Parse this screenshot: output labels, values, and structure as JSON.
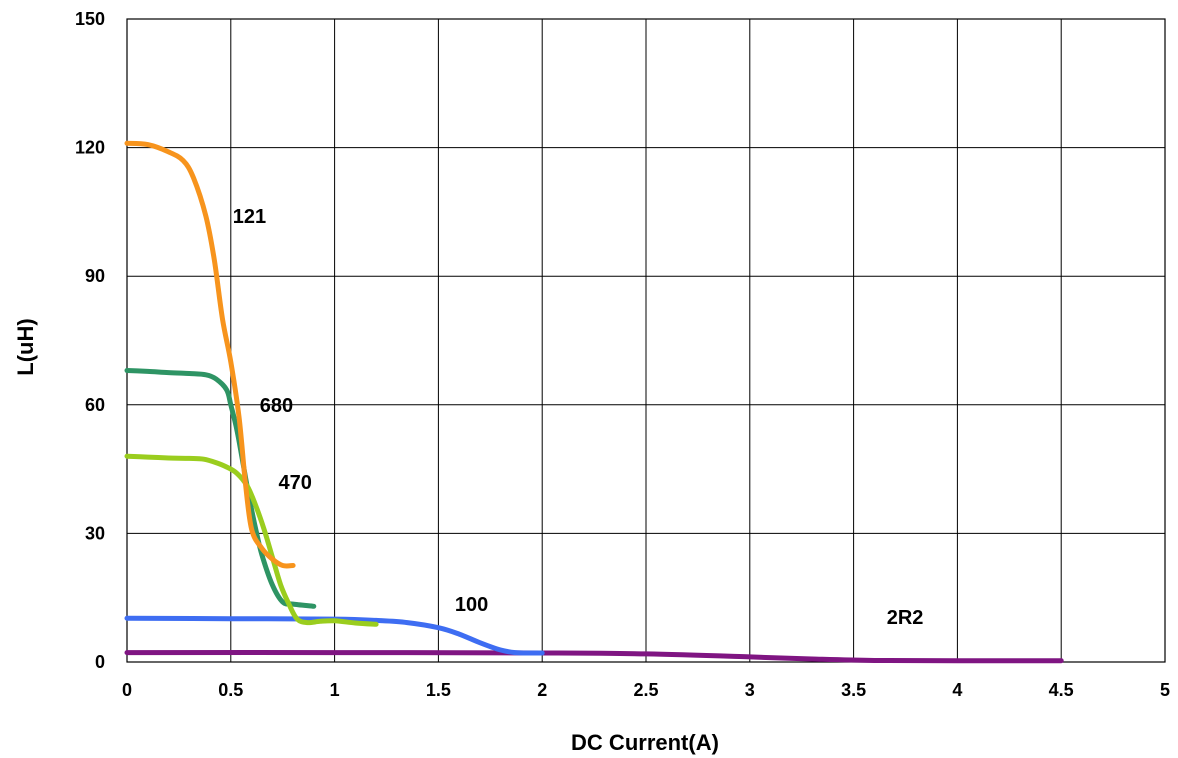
{
  "chart_data": {
    "type": "line",
    "title": "",
    "xlabel": "DC Current(A)",
    "ylabel": "L(uH)",
    "xlim": [
      0,
      5
    ],
    "ylim": [
      0,
      150
    ],
    "xticks": [
      0,
      0.5,
      1,
      1.5,
      2,
      2.5,
      3,
      3.5,
      4,
      4.5,
      5
    ],
    "yticks": [
      0,
      30,
      60,
      90,
      120,
      150
    ],
    "xtick_labels": [
      "0",
      "0.5",
      "1",
      "1.5",
      "2",
      "2.5",
      "3",
      "3.5",
      "4",
      "4.5",
      "5"
    ],
    "ytick_labels": [
      "0",
      "30",
      "60",
      "90",
      "120",
      "150"
    ],
    "grid": true,
    "legend": "none",
    "series": [
      {
        "name": "121",
        "color": "#F7941D",
        "x": [
          0,
          0.1,
          0.2,
          0.27,
          0.32,
          0.38,
          0.42,
          0.46,
          0.5,
          0.54,
          0.57,
          0.6,
          0.65,
          0.7,
          0.75,
          0.8
        ],
        "y": [
          121,
          120.7,
          119,
          117,
          113,
          104,
          94,
          80,
          70,
          57,
          42,
          31,
          26.5,
          24,
          22.5,
          22.5
        ]
      },
      {
        "name": "680",
        "color": "#2E9464",
        "x": [
          0,
          0.1,
          0.2,
          0.3,
          0.38,
          0.43,
          0.48,
          0.5,
          0.53,
          0.56,
          0.59,
          0.62,
          0.65,
          0.7,
          0.75,
          0.8,
          0.9
        ],
        "y": [
          68,
          67.8,
          67.5,
          67.3,
          67,
          66,
          63.5,
          60,
          54,
          46,
          38,
          31,
          25,
          18,
          14,
          13.5,
          13
        ]
      },
      {
        "name": "470",
        "color": "#9ACD1E",
        "x": [
          0,
          0.1,
          0.2,
          0.3,
          0.37,
          0.43,
          0.48,
          0.53,
          0.58,
          0.62,
          0.66,
          0.7,
          0.74,
          0.78,
          0.82,
          0.87,
          0.93,
          1.0,
          1.1,
          1.2
        ],
        "y": [
          48,
          47.8,
          47.6,
          47.5,
          47.3,
          46.5,
          45.5,
          44,
          41,
          36.5,
          31,
          24.5,
          18,
          13.5,
          10,
          9.2,
          9.5,
          9.6,
          9.1,
          8.8
        ]
      },
      {
        "name": "100",
        "color": "#3E6DF2",
        "x": [
          0,
          0.5,
          1.0,
          1.2,
          1.35,
          1.5,
          1.6,
          1.7,
          1.8,
          1.87,
          1.95,
          2.0
        ],
        "y": [
          10.2,
          10.1,
          10,
          9.7,
          9.2,
          8,
          6.5,
          4.5,
          2.8,
          2.2,
          2.1,
          2.1
        ]
      },
      {
        "name": "2R2",
        "color": "#7F1582",
        "x": [
          0,
          1,
          2,
          2.5,
          3,
          3.3,
          3.6,
          4,
          4.5
        ],
        "y": [
          2.2,
          2.2,
          2.1,
          1.9,
          1.2,
          0.7,
          0.35,
          0.3,
          0.3
        ]
      }
    ],
    "annotations": [
      {
        "text": "121",
        "x": 0.5,
        "y": 104
      },
      {
        "text": "680",
        "x": 0.63,
        "y": 60
      },
      {
        "text": "470",
        "x": 0.72,
        "y": 42
      },
      {
        "text": "100",
        "x": 1.57,
        "y": 13.5
      },
      {
        "text": "2R2",
        "x": 3.65,
        "y": 10.5
      }
    ]
  }
}
